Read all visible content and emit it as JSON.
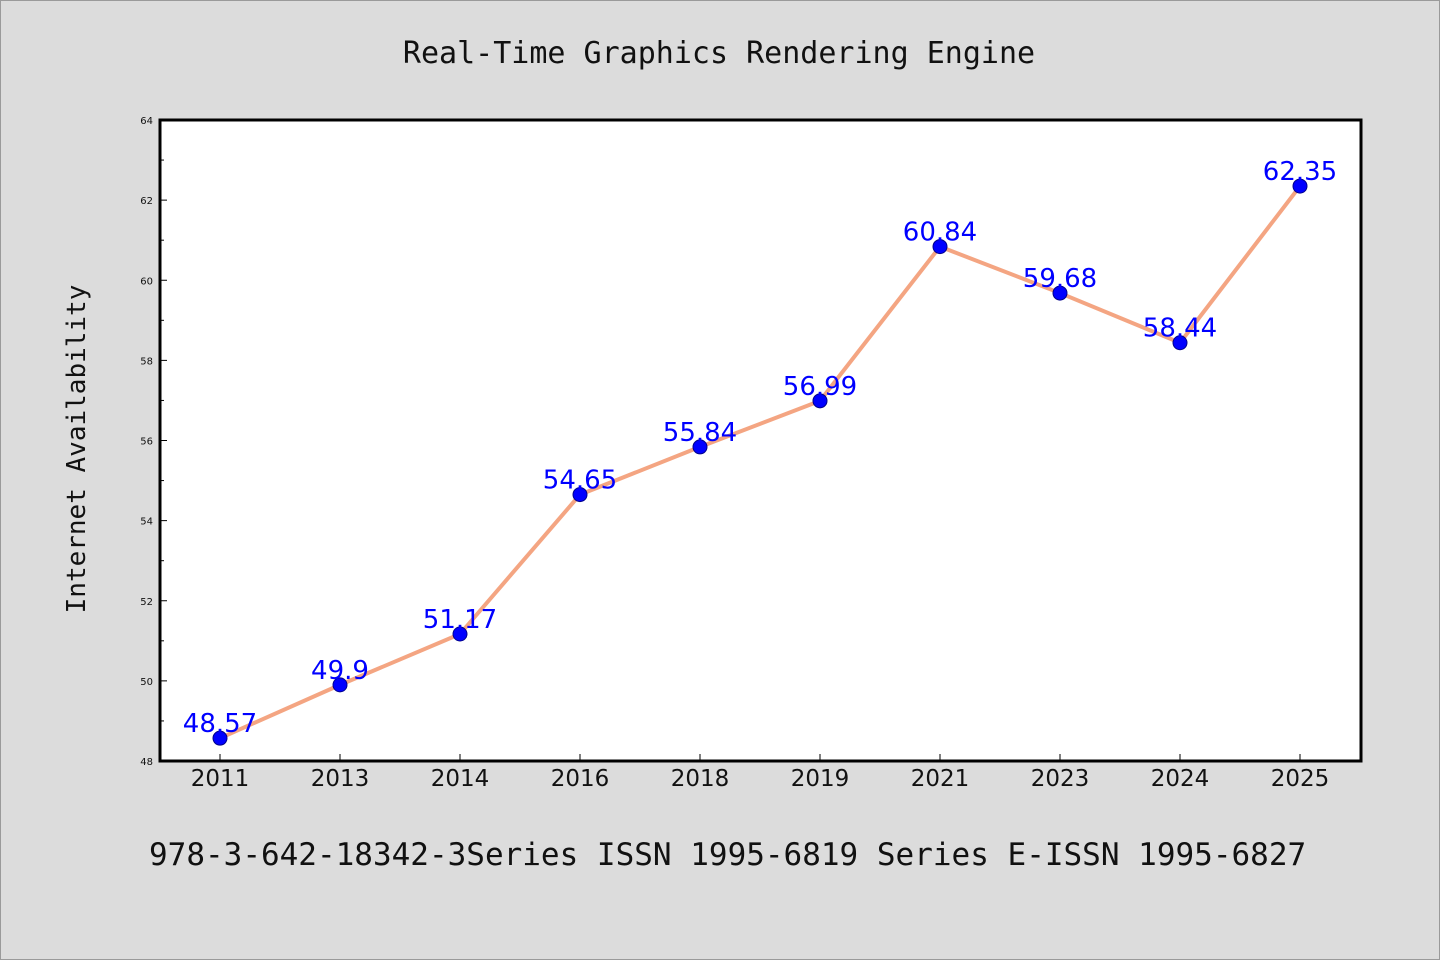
{
  "header": {
    "title": "Real-Time Graphics Rendering Engine"
  },
  "footer": {
    "text": "978-3-642-18342-3Series ISSN 1995-6819 Series E-ISSN 1995-6827"
  },
  "colors": {
    "line": "#f4a582",
    "marker": "#0000ff",
    "label": "#0000ff",
    "background": "#dcdcdc",
    "plot_background": "#ffffff"
  },
  "chart_data": {
    "type": "line",
    "title": "Real-Time Graphics Rendering Engine",
    "xlabel": "",
    "ylabel": "Internet Availability",
    "categories": [
      "2011",
      "2013",
      "2014",
      "2016",
      "2018",
      "2019",
      "2021",
      "2023",
      "2024",
      "2025"
    ],
    "values": [
      48.57,
      49.9,
      51.17,
      54.65,
      55.84,
      56.99,
      60.84,
      59.68,
      58.44,
      62.35
    ],
    "data_labels": [
      "48.57",
      "49.9",
      "51.17",
      "54.65",
      "55.84",
      "56.99",
      "60.84",
      "59.68",
      "58.44",
      "62.35"
    ],
    "ylim": [
      48,
      64
    ],
    "yticks": [
      "48",
      "50",
      "52",
      "54",
      "56",
      "58",
      "60",
      "62",
      "64"
    ],
    "grid": false,
    "legend": "none"
  }
}
